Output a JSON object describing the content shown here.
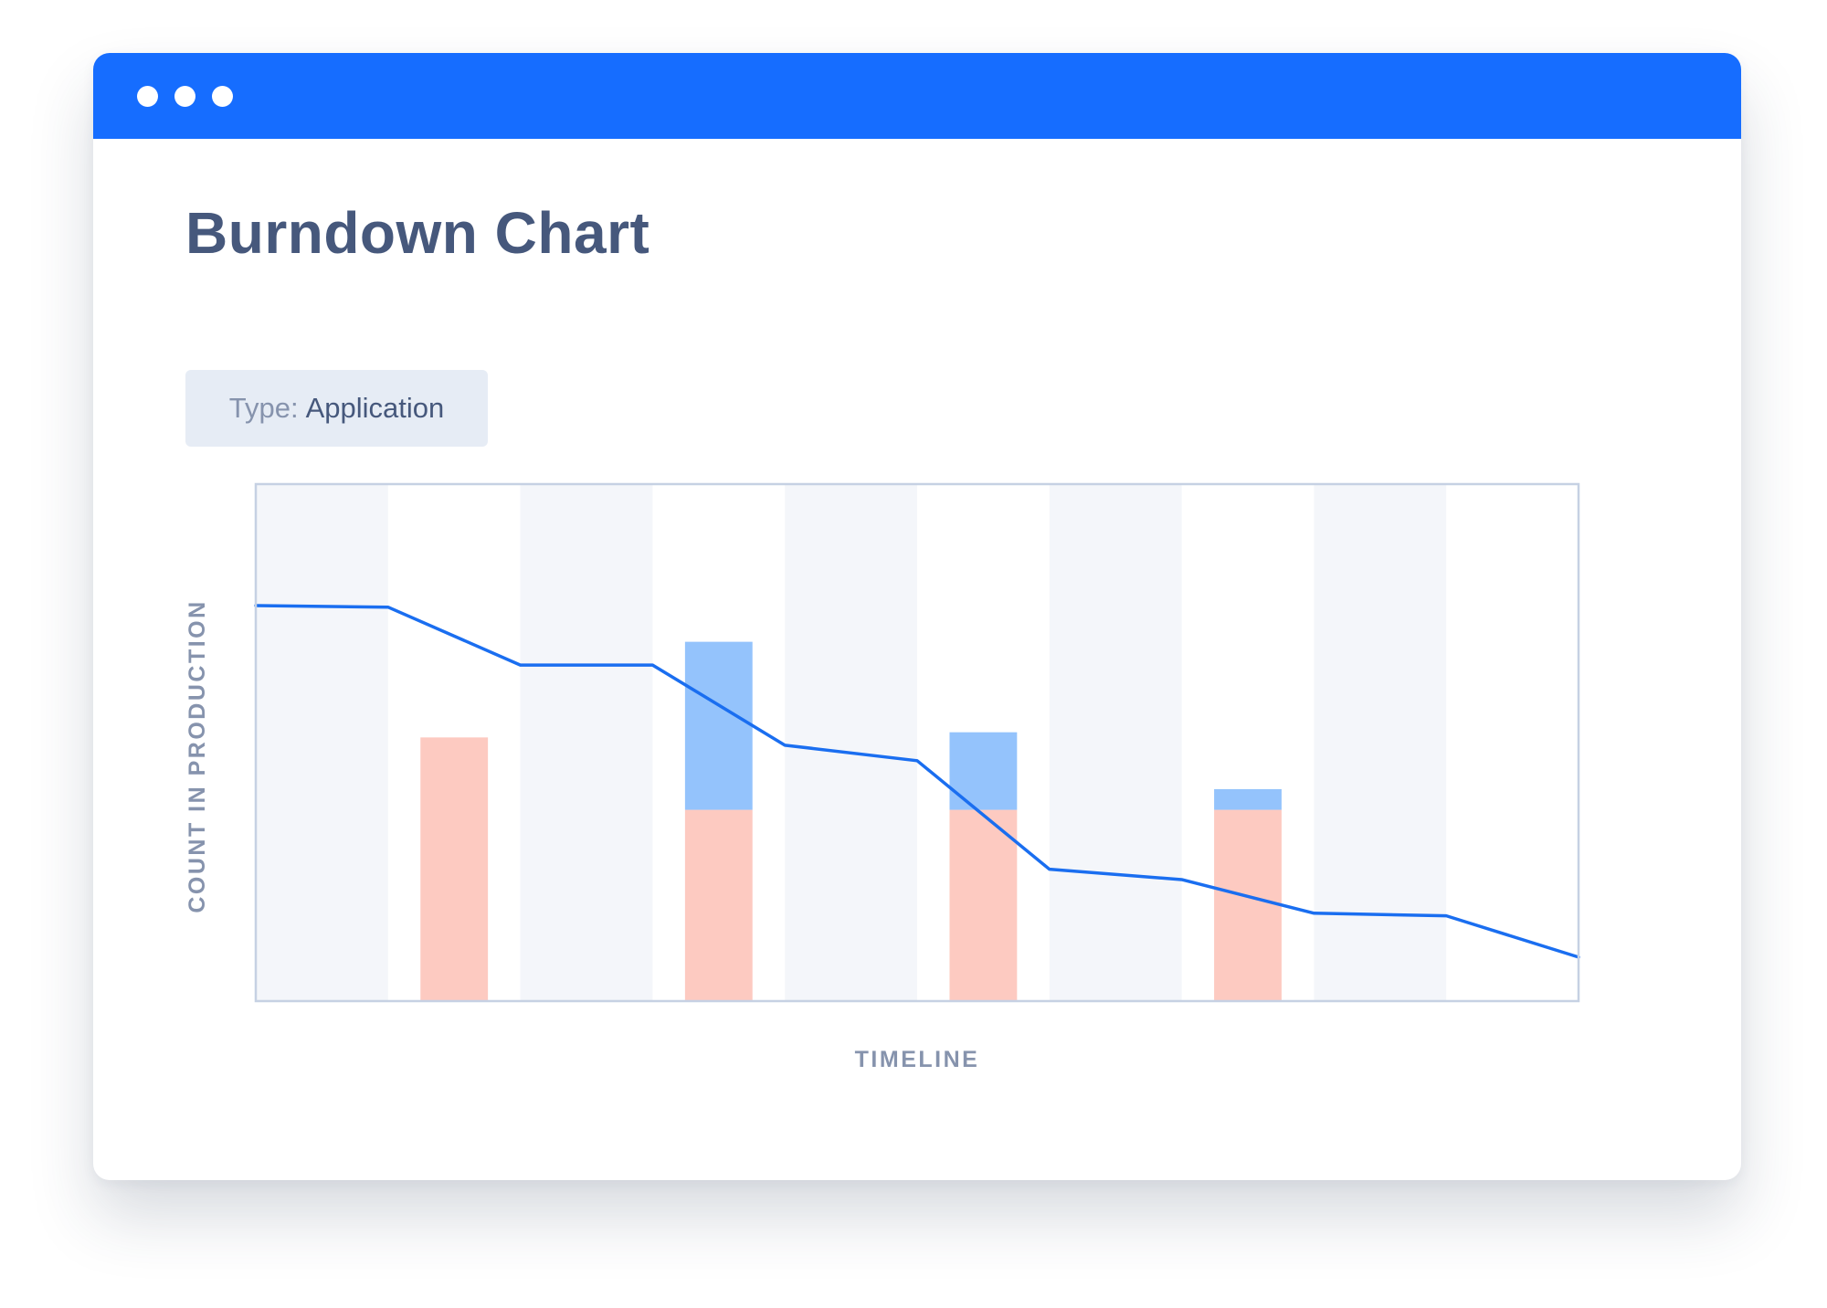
{
  "window": {
    "controls": [
      "window-dot",
      "window-dot",
      "window-dot"
    ]
  },
  "page": {
    "title": "Burndown Chart"
  },
  "filter": {
    "key": "Type:",
    "value": "Application"
  },
  "colors": {
    "titlebar": "#166dff",
    "line": "#1a6ef0",
    "stack_bottom": "#fdcac1",
    "stack_top": "#94c3fc",
    "band": "#f4f6fa",
    "axis": "#c6d1e3",
    "label": "#8693ad",
    "title": "#46587c"
  },
  "chart_data": {
    "type": "bar",
    "xlabel": "TIMELINE",
    "ylabel": "COUNT IN PRODUCTION",
    "categories": [
      "",
      "",
      "",
      "",
      "",
      "",
      "",
      "",
      "",
      ""
    ],
    "ylim": [
      0,
      100
    ],
    "grid": false,
    "shaded_bands": [
      0,
      2,
      4,
      6,
      8
    ],
    "series": [
      {
        "kind": "bar",
        "stack": "bottom",
        "values": [
          0,
          51,
          0,
          37,
          0,
          37,
          0,
          37,
          0,
          0
        ]
      },
      {
        "kind": "bar",
        "stack": "top",
        "values": [
          0,
          0,
          0,
          32.5,
          0,
          15,
          0,
          4,
          0,
          0
        ]
      },
      {
        "kind": "line",
        "x": [
          0,
          1,
          2,
          3,
          4,
          5,
          6,
          7,
          8,
          9,
          10
        ],
        "values": [
          76.5,
          76.2,
          65,
          65,
          49.5,
          46.5,
          25.5,
          23.5,
          17,
          16.5,
          8.5
        ]
      }
    ]
  }
}
